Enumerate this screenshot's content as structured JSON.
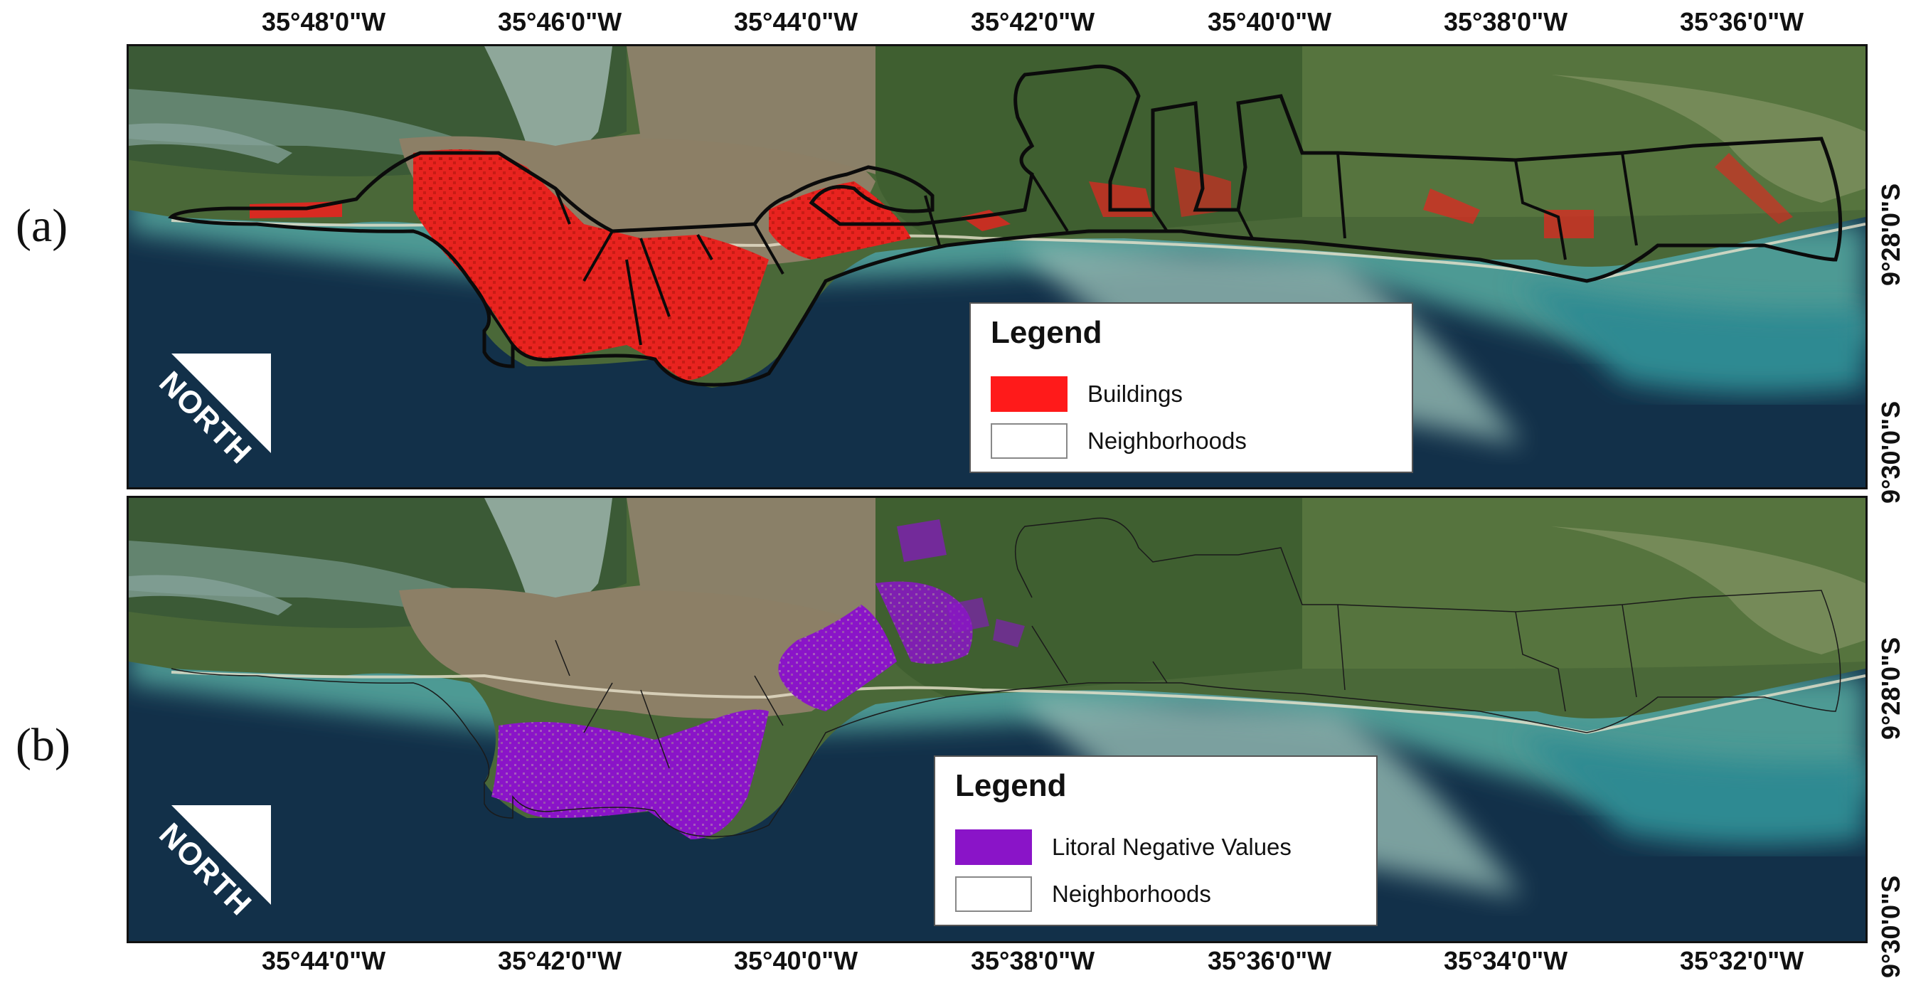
{
  "top_longitudes": [
    "35°48'0\"W",
    "35°46'0\"W",
    "35°44'0\"W",
    "35°42'0\"W",
    "35°40'0\"W",
    "35°38'0\"W",
    "35°36'0\"W"
  ],
  "bottom_longitudes": [
    "35°44'0\"W",
    "35°42'0\"W",
    "35°40'0\"W",
    "35°38'0\"W",
    "35°36'0\"W",
    "35°34'0\"W",
    "35°32'0\"W"
  ],
  "panel_a": {
    "label": "(a)",
    "latitudes": [
      "9°28'0\"S",
      "9°30'0\"S"
    ],
    "north": "NORTH",
    "legend": {
      "title": "Legend",
      "items": [
        {
          "label": "Buildings",
          "color": "#ff1a1a"
        },
        {
          "label": "Neighborhoods",
          "color": "#ffffff"
        }
      ]
    }
  },
  "panel_b": {
    "label": "(b)",
    "latitudes": [
      "9°28'0\"S",
      "9°30'0\"S"
    ],
    "north": "NORTH",
    "legend": {
      "title": "Legend",
      "items": [
        {
          "label": "Litoral Negative Values",
          "color": "#8a14c8"
        },
        {
          "label": "Neighborhoods",
          "color": "#ffffff"
        }
      ]
    }
  },
  "colors": {
    "deep_water": "#123049",
    "shallow_water": "#3f8f8c",
    "land": "#4d6a3a",
    "urban": "#8a7a62",
    "buildings": "#ff1a1a",
    "negative_values": "#8a14c8"
  }
}
